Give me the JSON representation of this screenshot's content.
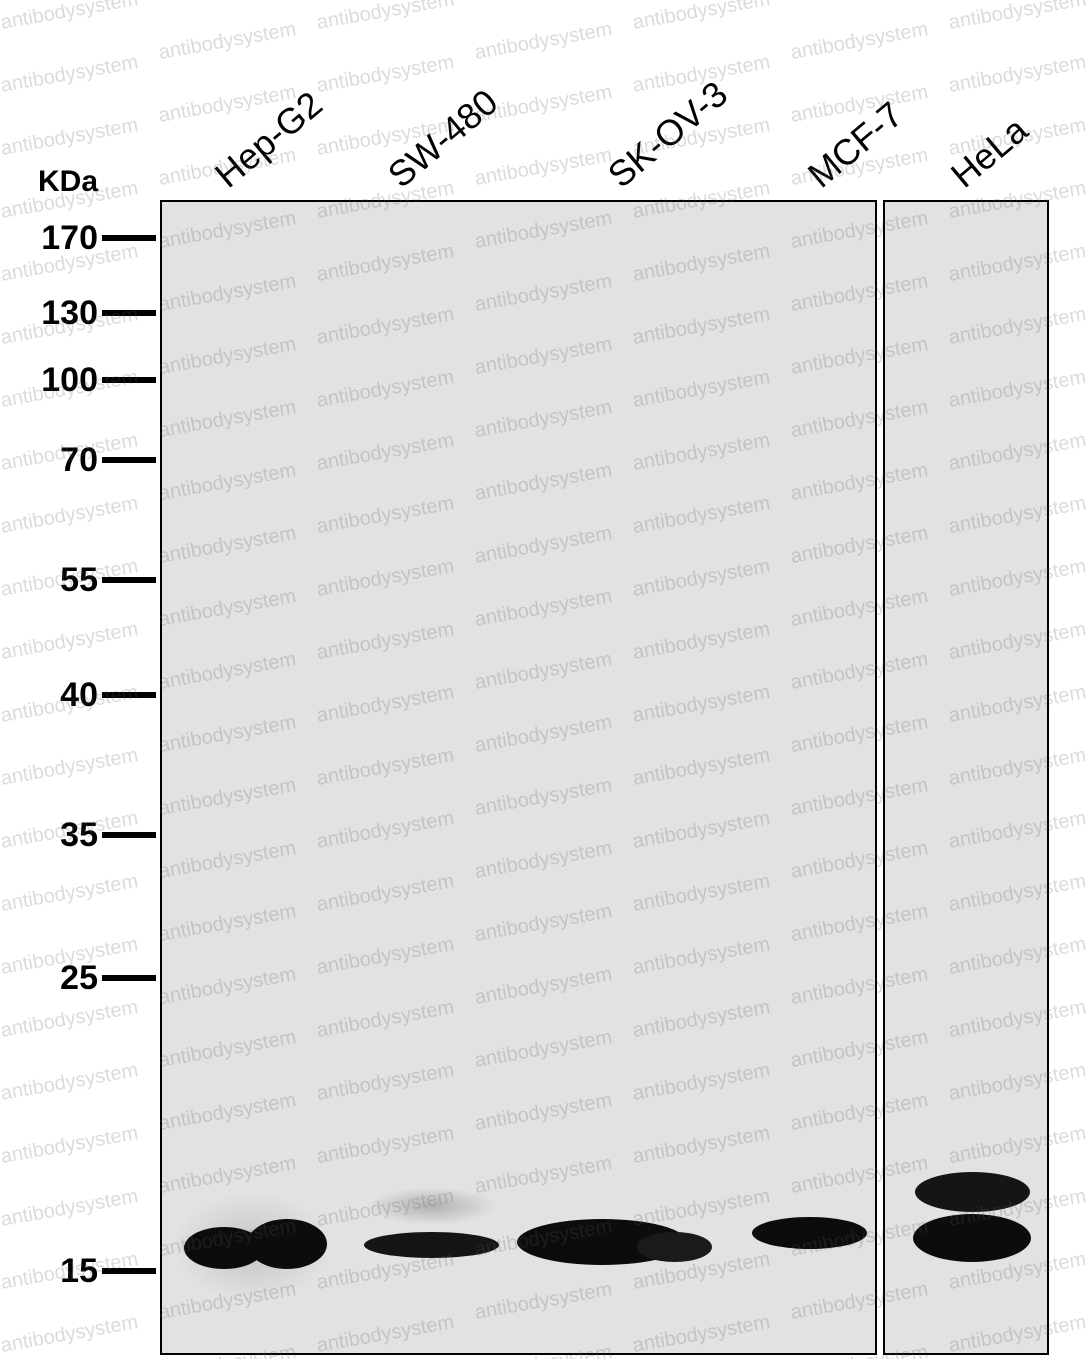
{
  "unit_label": "KDa",
  "markers": [
    "170",
    "130",
    "100",
    "70",
    "55",
    "40",
    "35",
    "25",
    "15"
  ],
  "lanes": [
    "Hep-G2",
    "SW-480",
    "SK-OV-3",
    "MCF-7",
    "HeLa"
  ],
  "watermark": "antibodysystem",
  "colors": {
    "band": "#0c0c0c",
    "membrane": "#e2e2e2",
    "border": "#000000"
  }
}
